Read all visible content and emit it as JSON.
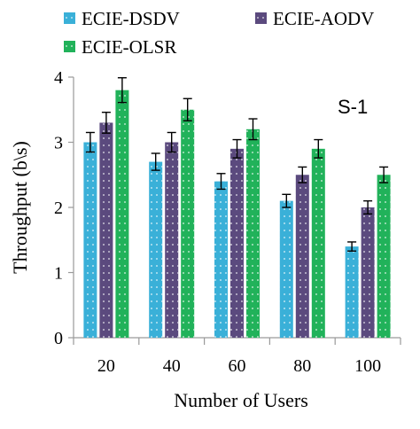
{
  "chart_data": {
    "type": "bar",
    "title": "",
    "xlabel": "Number of Users",
    "ylabel": "Throughput (b\\s)",
    "categories": [
      "20",
      "40",
      "60",
      "80",
      "100"
    ],
    "ylim": [
      0,
      4
    ],
    "yticks": [
      "0",
      "1",
      "2",
      "3",
      "4"
    ],
    "annotation": "S-1",
    "legend_position": "top",
    "grid": false,
    "error_bars": true,
    "series": [
      {
        "name": "ECIE-DSDV",
        "color": "#3ab0d8",
        "values": [
          3.0,
          2.7,
          2.4,
          2.1,
          1.4
        ],
        "errors": [
          0.15,
          0.13,
          0.12,
          0.1,
          0.07
        ]
      },
      {
        "name": "ECIE-AODV",
        "color": "#5b4a7e",
        "values": [
          3.3,
          3.0,
          2.9,
          2.5,
          2.0
        ],
        "errors": [
          0.16,
          0.15,
          0.14,
          0.12,
          0.1
        ]
      },
      {
        "name": "ECIE-OLSR",
        "color": "#21b25a",
        "values": [
          3.8,
          3.5,
          3.2,
          2.9,
          2.5
        ],
        "errors": [
          0.19,
          0.17,
          0.16,
          0.14,
          0.12
        ]
      }
    ]
  }
}
